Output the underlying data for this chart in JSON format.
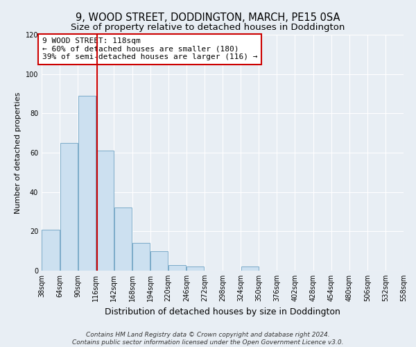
{
  "title": "9, WOOD STREET, DODDINGTON, MARCH, PE15 0SA",
  "subtitle": "Size of property relative to detached houses in Doddington",
  "xlabel": "Distribution of detached houses by size in Doddington",
  "ylabel": "Number of detached properties",
  "bin_edges": [
    38,
    64,
    90,
    116,
    142,
    168,
    194,
    220,
    246,
    272,
    298,
    324,
    350,
    376,
    402,
    428,
    454,
    480,
    506,
    532,
    558
  ],
  "bar_heights": [
    21,
    65,
    89,
    61,
    32,
    14,
    10,
    3,
    2,
    0,
    0,
    2,
    0,
    0,
    0,
    0,
    0,
    0,
    0,
    0
  ],
  "bar_color": "#cce0f0",
  "bar_edge_color": "#7aaac8",
  "vline_x": 118,
  "vline_color": "#cc0000",
  "ylim": [
    0,
    120
  ],
  "yticks": [
    0,
    20,
    40,
    60,
    80,
    100,
    120
  ],
  "annotation_title": "9 WOOD STREET: 118sqm",
  "annotation_line1": "← 60% of detached houses are smaller (180)",
  "annotation_line2": "39% of semi-detached houses are larger (116) →",
  "annotation_box_color": "#cc0000",
  "footer_line1": "Contains HM Land Registry data © Crown copyright and database right 2024.",
  "footer_line2": "Contains public sector information licensed under the Open Government Licence v3.0.",
  "background_color": "#e8eef4",
  "plot_bg_color": "#e8eef4",
  "grid_color": "#ffffff",
  "title_fontsize": 10.5,
  "subtitle_fontsize": 9.5,
  "xlabel_fontsize": 9,
  "ylabel_fontsize": 8,
  "tick_fontsize": 7,
  "footer_fontsize": 6.5,
  "ann_fontsize": 8
}
